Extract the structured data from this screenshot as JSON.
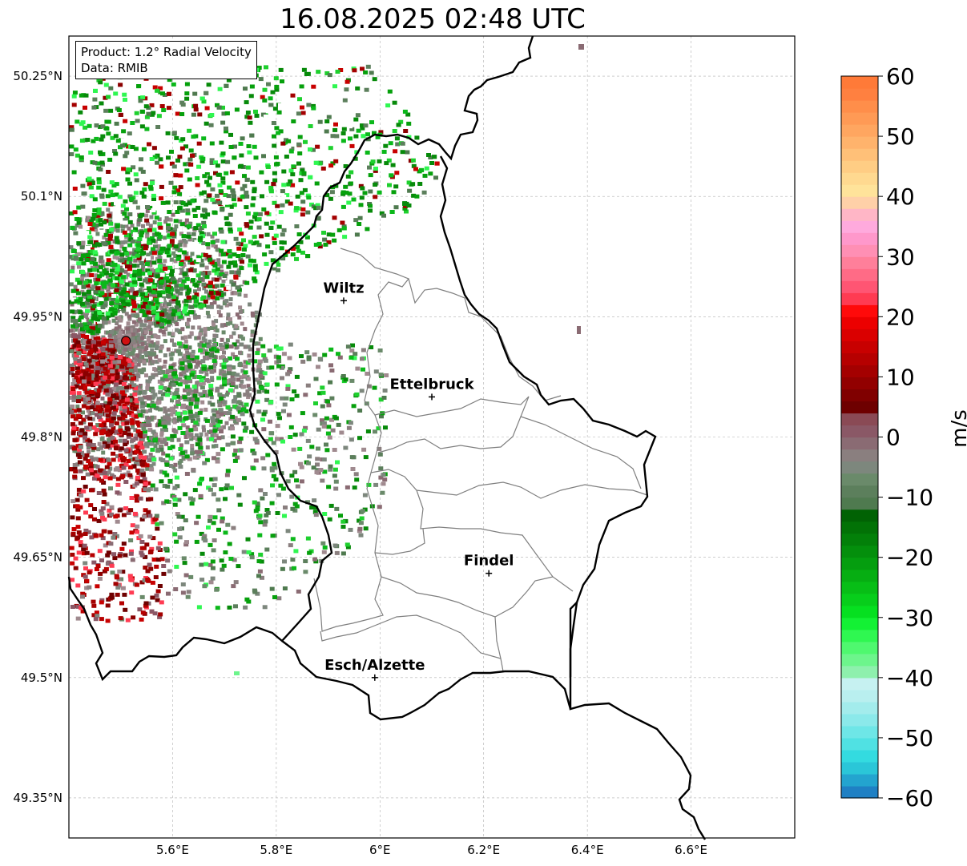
{
  "title": "16.08.2025 02:48 UTC",
  "info_box": {
    "product": "Product: 1.2° Radial Velocity",
    "data": "Data: RMIB"
  },
  "map": {
    "lat_ticks": [
      "50.25°N",
      "50.1°N",
      "49.95°N",
      "49.8°N",
      "49.65°N",
      "49.5°N",
      "49.35°N"
    ],
    "lon_ticks": [
      "5.6°E",
      "5.8°E",
      "6°E",
      "6.2°E",
      "6.4°E",
      "6.6°E"
    ],
    "extent": {
      "lon_min": 5.4,
      "lon_max": 6.8,
      "lat_min": 49.3,
      "lat_max": 50.3
    },
    "gridlines": true,
    "cities": [
      {
        "name": "Wiltz",
        "lon": 5.93,
        "lat": 49.97
      },
      {
        "name": "Ettelbruck",
        "lon": 6.1,
        "lat": 49.85
      },
      {
        "name": "Findel",
        "lon": 6.21,
        "lat": 49.63
      },
      {
        "name": "Esch/Alzette",
        "lon": 5.99,
        "lat": 49.5
      }
    ],
    "radar_site": {
      "lon": 5.51,
      "lat": 49.92
    },
    "colors": {
      "radar_site": "#d01010",
      "border_country": "#000000",
      "border_canton": "#7f7f7f",
      "grid": "#b0b0b0"
    }
  },
  "colorbar": {
    "label": "m/s",
    "min": -60,
    "max": 60,
    "ticks": [
      "60",
      "50",
      "40",
      "30",
      "20",
      "10",
      "0",
      "−10",
      "−20",
      "−30",
      "−40",
      "−50",
      "−60"
    ],
    "colors_bottom_to_top": [
      "#1f80c4",
      "#23a4cf",
      "#2ac6d8",
      "#33dbe0",
      "#50e1e3",
      "#6ee6e7",
      "#8be9ea",
      "#a3ecec",
      "#b9efef",
      "#c6f1f1",
      "#8ef0ad",
      "#6df58c",
      "#4ff86f",
      "#2ff751",
      "#13f134",
      "#06e020",
      "#07ce1b",
      "#07be16",
      "#06ae12",
      "#059e0f",
      "#048f0c",
      "#038009",
      "#027206",
      "#016204",
      "#4f7a4f",
      "#5c7f5c",
      "#6a8a6a",
      "#7d877d",
      "#8a7f7f",
      "#8a6b73",
      "#8a5866",
      "#8a4a55",
      "#6e0000",
      "#800000",
      "#920000",
      "#a40000",
      "#b60000",
      "#c80000",
      "#da0000",
      "#ec0000",
      "#ff0a0a",
      "#ff3b52",
      "#ff5573",
      "#ff6b86",
      "#ff7f9a",
      "#ff8fb4",
      "#ff98cb",
      "#ffaadd",
      "#ffb6c6",
      "#ffd0a8",
      "#ffe39a",
      "#ffd990",
      "#ffcd84",
      "#ffc078",
      "#ffb36c",
      "#ffa660",
      "#ff9a55",
      "#ff8e4a",
      "#ff8040",
      "#ff7a38"
    ]
  }
}
